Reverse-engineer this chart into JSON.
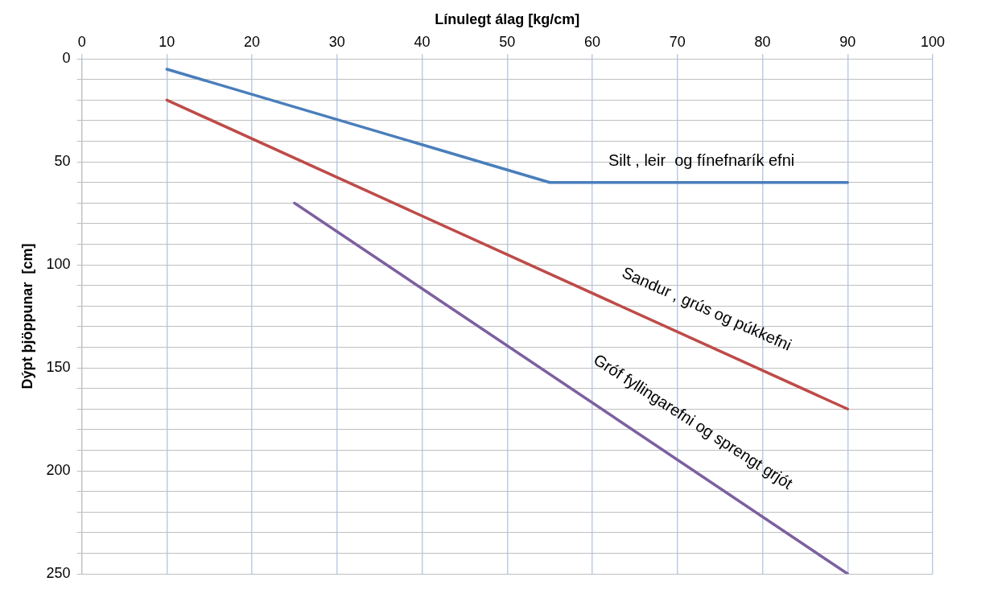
{
  "chart_data": {
    "type": "line",
    "xlabel": "Línulegt álag [kg/cm]",
    "ylabel": "Dýpt þjöppunar  [cm]",
    "xlim": [
      0,
      100
    ],
    "xticks": [
      0,
      10,
      20,
      30,
      40,
      50,
      60,
      70,
      80,
      90,
      100
    ],
    "ylim": [
      250,
      0
    ],
    "yticks": [
      0,
      {
        "value": 10,
        "label": null
      },
      {
        "value": 20,
        "label": null
      },
      {
        "value": 30,
        "label": null
      },
      {
        "value": 40,
        "label": null
      },
      50,
      {
        "value": 60,
        "label": null
      },
      {
        "value": 70,
        "label": null
      },
      {
        "value": 80,
        "label": null
      },
      {
        "value": 90,
        "label": null
      },
      100,
      {
        "value": 110,
        "label": null
      },
      {
        "value": 120,
        "label": null
      },
      {
        "value": 130,
        "label": null
      },
      {
        "value": 140,
        "label": null
      },
      150,
      {
        "value": 160,
        "label": null
      },
      {
        "value": 170,
        "label": null
      },
      {
        "value": 180,
        "label": null
      },
      {
        "value": 190,
        "label": null
      },
      200,
      {
        "value": 210,
        "label": null
      },
      {
        "value": 220,
        "label": null
      },
      {
        "value": 230,
        "label": null
      },
      {
        "value": 240,
        "label": null
      },
      250
    ],
    "grid": true,
    "legend": false,
    "marker": "none",
    "line_style": "solid",
    "series": [
      {
        "color": "#4a7ebb",
        "x": [
          10,
          55,
          90
        ],
        "values": [
          5,
          60,
          60
        ]
      },
      {
        "color": "#be4b48",
        "x": [
          10,
          90
        ],
        "values": [
          20,
          170
        ]
      },
      {
        "color": "#7d60a0",
        "x": [
          25,
          90
        ],
        "values": [
          70,
          250
        ]
      }
    ],
    "annotations": [
      "Silt , leir  og fínefnarík efni",
      "Sandur , grús og púkkefni",
      "Gróf fyllingarefni og sprengt grjót"
    ]
  }
}
